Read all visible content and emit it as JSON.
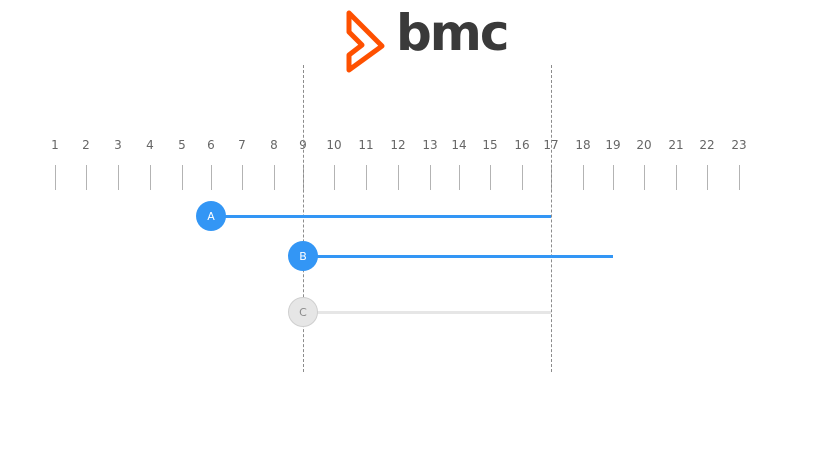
{
  "logo": {
    "text": "bmc",
    "mark_color": "#fe5000",
    "text_color": "#3a3a3a"
  },
  "timeline": {
    "ticks": [
      "1",
      "2",
      "3",
      "4",
      "5",
      "6",
      "7",
      "8",
      "9",
      "10",
      "11",
      "12",
      "13",
      "14",
      "15",
      "16",
      "17",
      "18",
      "19",
      "20",
      "21",
      "22",
      "23"
    ],
    "guides": [
      9,
      17
    ]
  },
  "bars": [
    {
      "label": "A",
      "start": 6,
      "end": 17,
      "state": "active"
    },
    {
      "label": "B",
      "start": 9,
      "end": 19,
      "state": "active"
    },
    {
      "label": "C",
      "start": 9,
      "end": 17,
      "state": "inactive"
    }
  ],
  "colors": {
    "active": "#3396f5",
    "active_text": "#ffffff",
    "inactive": "#e6e6e6",
    "inactive_border": "#cfcfcf",
    "inactive_text": "#8a8a8a"
  }
}
